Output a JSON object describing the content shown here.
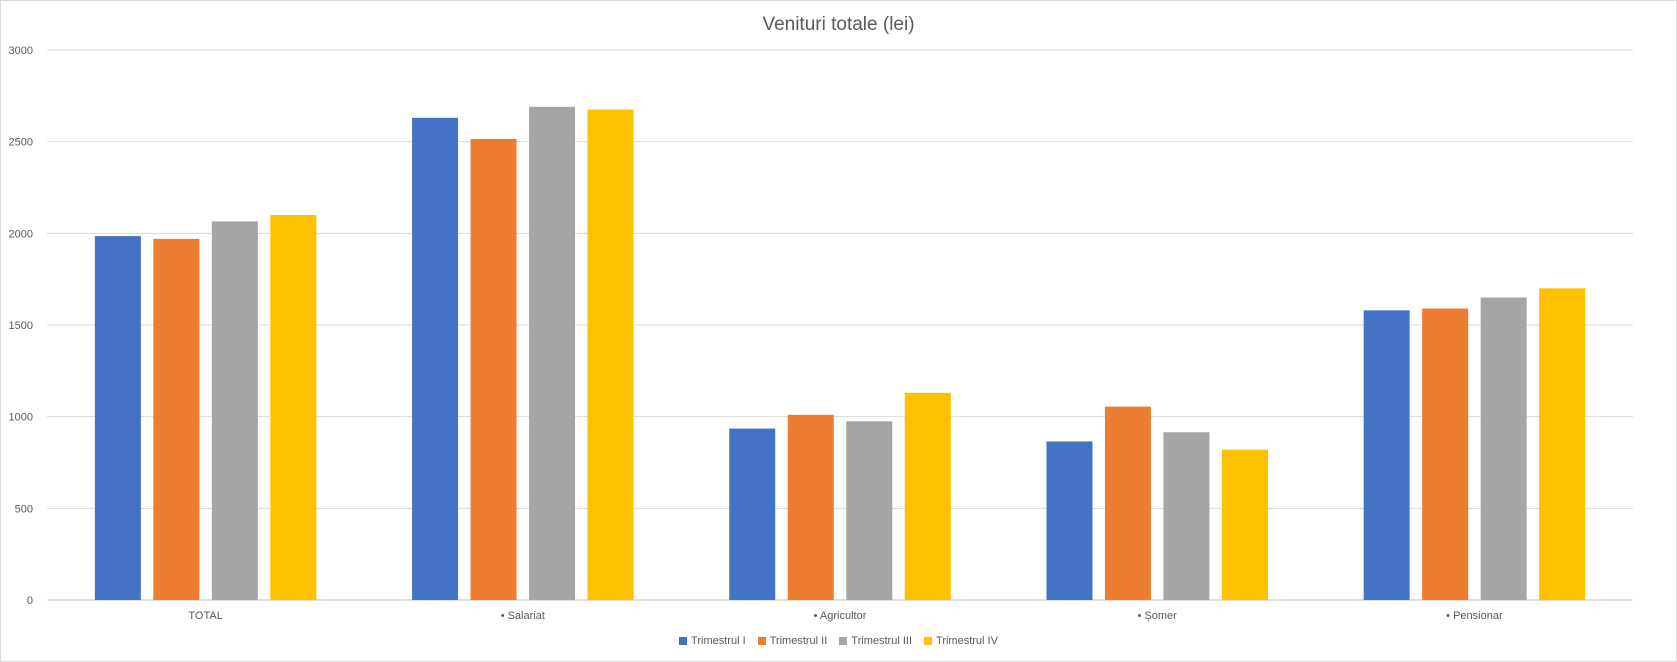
{
  "chart_data": {
    "type": "bar",
    "title": "Venituri totale (lei)",
    "xlabel": "",
    "ylabel": "",
    "ylim": [
      0,
      3000
    ],
    "yticks": [
      0,
      500,
      1000,
      1500,
      2000,
      2500,
      3000
    ],
    "grid": true,
    "legend_position": "bottom",
    "categories": [
      "TOTAL",
      "• Salariat",
      "• Agricultor",
      "• Șomer",
      "• Pensionar"
    ],
    "series": [
      {
        "name": "Trimestrul I",
        "color": "#4472c4",
        "values": [
          1985,
          2630,
          935,
          865,
          1580
        ]
      },
      {
        "name": "Trimestrul II",
        "color": "#ed7d31",
        "values": [
          1970,
          2515,
          1010,
          1055,
          1590
        ]
      },
      {
        "name": "Trimestrul III",
        "color": "#a5a5a5",
        "values": [
          2065,
          2690,
          975,
          915,
          1650
        ]
      },
      {
        "name": "Trimestrul IV",
        "color": "#ffc000",
        "values": [
          2100,
          2675,
          1130,
          820,
          1700
        ]
      }
    ]
  }
}
